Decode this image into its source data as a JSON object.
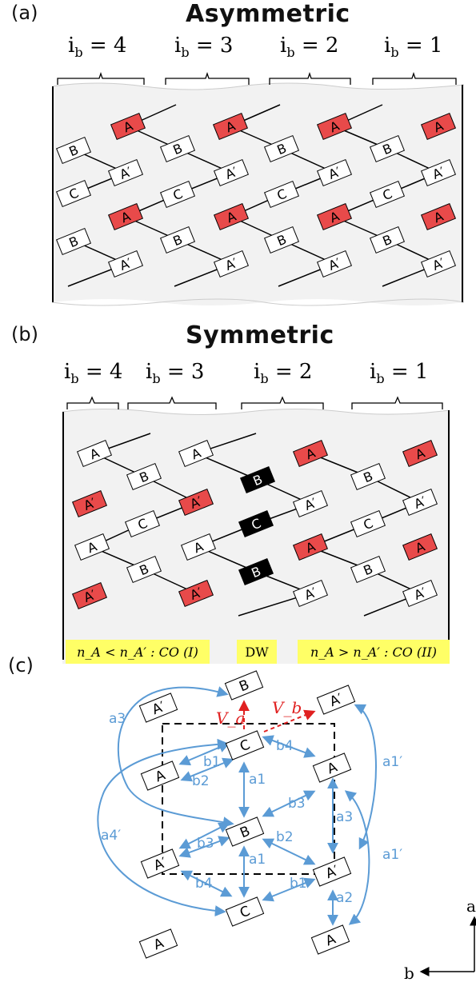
{
  "panel_a": {
    "letter": "(a)",
    "title": "Asymmetric",
    "ib_labels": [
      "4",
      "3",
      "2",
      "1"
    ]
  },
  "panel_b": {
    "letter": "(b)",
    "title": "Symmetric",
    "ib_labels": [
      "4",
      "3",
      "2",
      "1"
    ],
    "region_left": "n_A < n_A′ : CO (I)",
    "region_mid": "DW",
    "region_right": "n_A > n_A′ : CO (II)"
  },
  "panel_c": {
    "letter": "(c)",
    "va": "V_a",
    "vb": "V_b",
    "bond_labels": [
      "a3′",
      "b1",
      "b2",
      "b4",
      "a1",
      "b3",
      "a4′",
      "b3",
      "b2",
      "a1",
      "a3",
      "b4",
      "b1",
      "a2",
      "a1′",
      "a1′"
    ],
    "axis_a": "a",
    "axis_b": "b"
  },
  "labels": {
    "A": "A",
    "Ap": "A′",
    "B": "B",
    "C": "C",
    "ib": "i",
    "ib_sub": "b",
    "eq": " = "
  },
  "colors": {
    "red": "#e84a4a",
    "black": "#000000",
    "blue": "#5b9bd5",
    "dashed_red": "#e02020",
    "yellow": "#ffff66",
    "panel_bg": "#f2f2f2"
  }
}
